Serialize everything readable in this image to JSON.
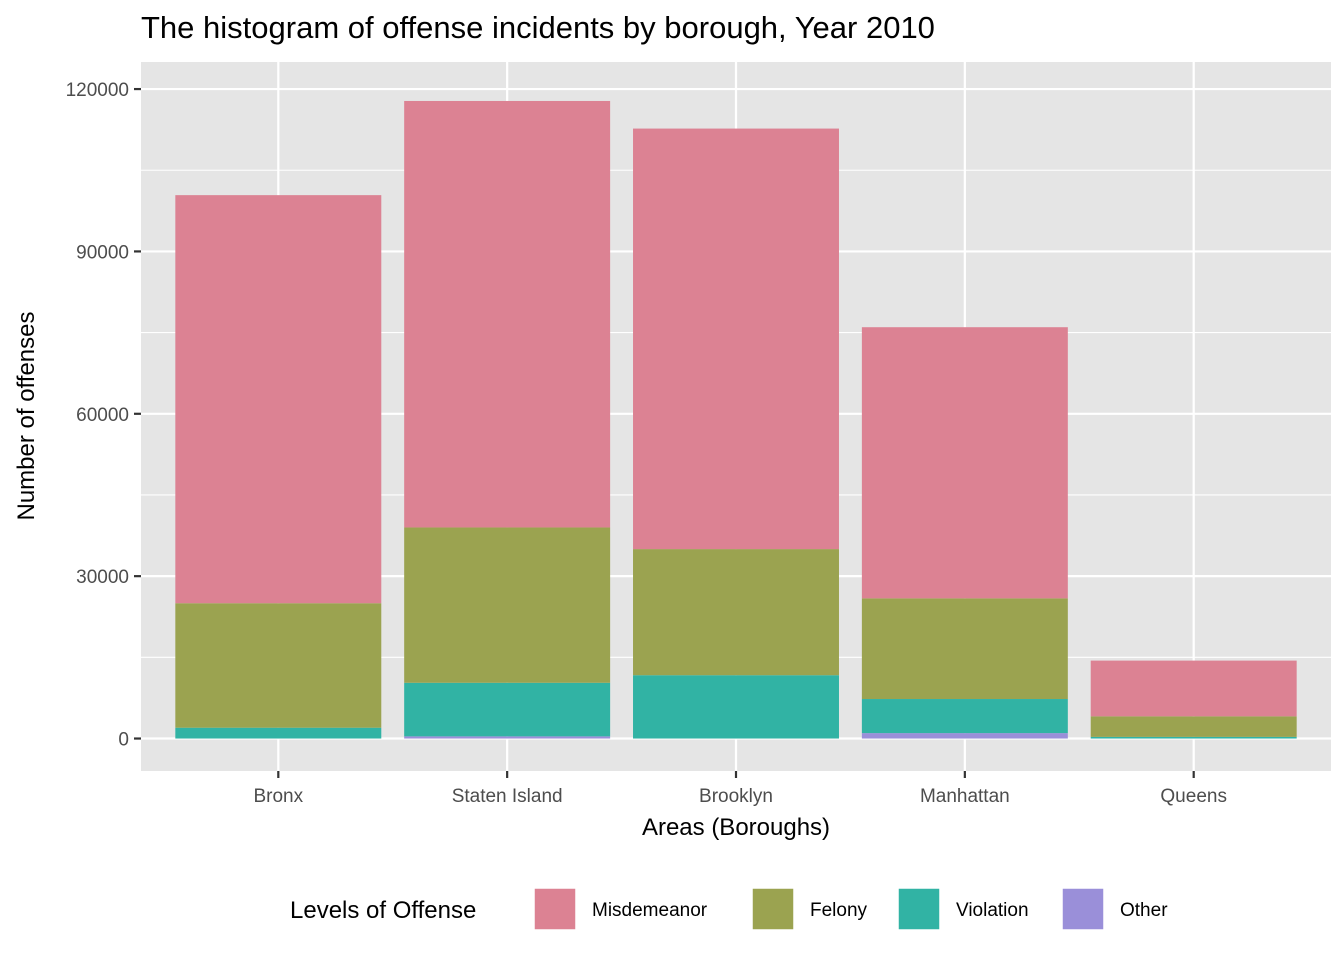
{
  "chart_data": {
    "type": "bar",
    "stacked": true,
    "title": "The histogram of offense incidents by borough, Year 2010",
    "xlabel": "Areas (Boroughs)",
    "ylabel": "Number of offenses",
    "ylim": [
      -6000,
      125000
    ],
    "yticks": [
      0,
      30000,
      60000,
      90000,
      120000
    ],
    "ytick_labels": [
      "0",
      "30000",
      "60000",
      "90000",
      "120000"
    ],
    "categories": [
      "Bronx",
      "Staten Island",
      "Brooklyn",
      "Manhattan",
      "Queens"
    ],
    "series": [
      {
        "name": "Other",
        "color": "#9a8fd9",
        "values": [
          0,
          400,
          0,
          1000,
          0
        ]
      },
      {
        "name": "Violation",
        "color": "#31b3a4",
        "values": [
          2000,
          9900,
          11700,
          6300,
          300
        ]
      },
      {
        "name": "Felony",
        "color": "#9ba350",
        "values": [
          23000,
          28700,
          23300,
          18600,
          3800
        ]
      },
      {
        "name": "Misdemeanor",
        "color": "#dc8293",
        "values": [
          75400,
          78800,
          77700,
          50100,
          10300
        ]
      }
    ],
    "legend": {
      "title": "Levels of Offense",
      "position": "bottom",
      "order": [
        "Misdemeanor",
        "Felony",
        "Violation",
        "Other"
      ]
    },
    "grid": true,
    "panel_background": "#e5e5e5",
    "grid_color": "#ffffff"
  }
}
